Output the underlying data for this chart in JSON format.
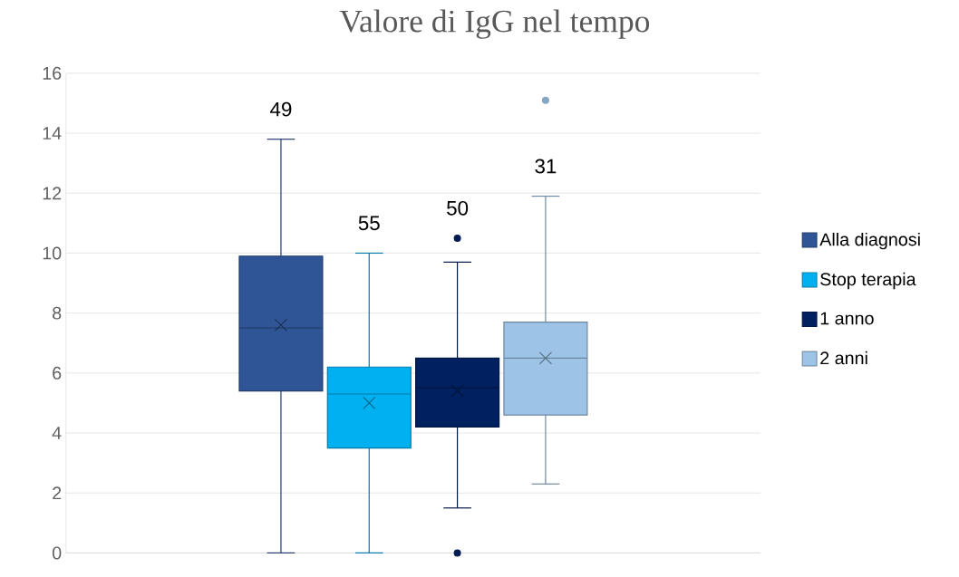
{
  "chart_data": {
    "type": "box",
    "title": "Valore di IgG nel tempo",
    "categories": [
      null
    ],
    "series": [
      {
        "name": "Alla diagnosi",
        "color": "#2f5597",
        "boxes": [
          {
            "low": 0,
            "q1": 5.4,
            "median": 7.5,
            "q3": 9.9,
            "high": 13.8,
            "mean": 7.6
          }
        ]
      },
      {
        "name": "Stop terapia",
        "color": "#00b0f0",
        "boxes": [
          {
            "low": 0,
            "q1": 3.5,
            "median": 5.3,
            "q3": 6.2,
            "high": 10,
            "mean": 5.0
          }
        ]
      },
      {
        "name": "1 anno",
        "color": "#002060",
        "boxes": [
          {
            "low": 1.5,
            "q1": 4.2,
            "median": 5.5,
            "q3": 6.5,
            "high": 9.7,
            "mean": 5.4,
            "outliers": [
              10.5,
              0
            ]
          }
        ]
      },
      {
        "name": "2 anni",
        "color": "#9dc3e6",
        "boxes": [
          {
            "low": 2.3,
            "q1": 4.6,
            "median": 6.5,
            "q3": 7.7,
            "high": 11.9,
            "mean": 6.5,
            "outliers": [
              15.1
            ]
          }
        ]
      }
    ],
    "annotations": [
      "49",
      "55",
      "50",
      "31"
    ],
    "ylim": [
      0,
      16
    ],
    "yticks": [
      0,
      2,
      4,
      6,
      8,
      10,
      12,
      14,
      16
    ],
    "grid": "y",
    "legend": "right",
    "marker": "circle"
  }
}
